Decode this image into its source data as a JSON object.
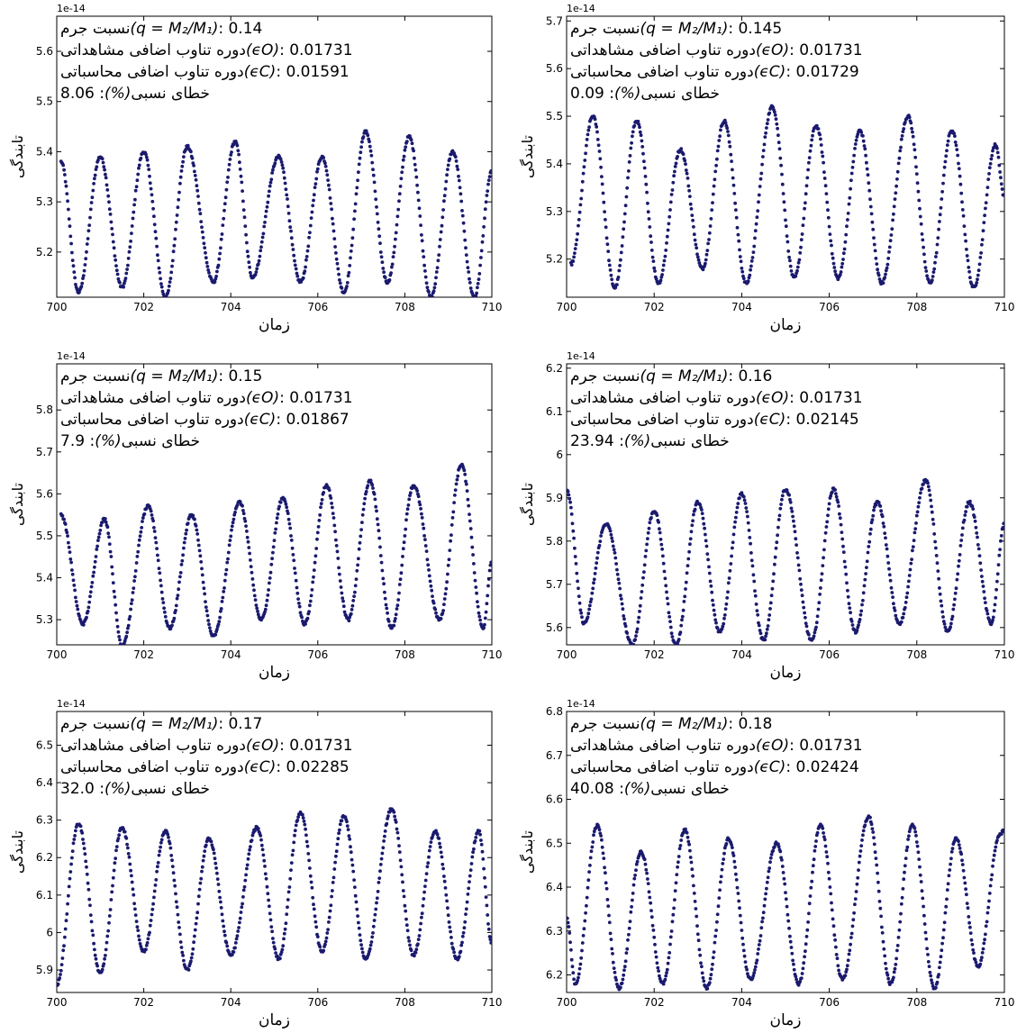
{
  "chart_data": [
    {
      "type": "scatter",
      "xlabel": "زمان",
      "ylabel": "تابندگی",
      "y_scale_label": "1e-14",
      "xlim": [
        700,
        710
      ],
      "ylim": [
        5.11,
        5.67
      ],
      "xticks": [
        700,
        702,
        704,
        706,
        708,
        710
      ],
      "yticks": [
        5.2,
        5.3,
        5.4,
        5.5,
        5.6
      ],
      "series_color": "#1a1a6e",
      "annotation": [
        {
          "label": "نسبت جرم",
          "math": "(q = M₂/M₁)",
          "value": ": 0.14"
        },
        {
          "label": "دوره تناوب اضافی مشاهداتی",
          "math": "(ϵO)",
          "value": ": 0.01731"
        },
        {
          "label": "دوره تناوب اضافی محاسباتی",
          "math": "(ϵC)",
          "value": ": 0.01591"
        },
        {
          "label": "خطای نسبی",
          "math": "(%)",
          "value": ": 8.06"
        }
      ],
      "cycles": [
        {
          "t": 700.1,
          "y": 5.38
        },
        {
          "t": 700.5,
          "y": 5.12
        },
        {
          "t": 701.0,
          "y": 5.39
        },
        {
          "t": 701.5,
          "y": 5.13
        },
        {
          "t": 702.0,
          "y": 5.4
        },
        {
          "t": 702.5,
          "y": 5.11
        },
        {
          "t": 703.0,
          "y": 5.41
        },
        {
          "t": 703.6,
          "y": 5.14
        },
        {
          "t": 704.1,
          "y": 5.42
        },
        {
          "t": 704.5,
          "y": 5.15
        },
        {
          "t": 705.1,
          "y": 5.39
        },
        {
          "t": 705.6,
          "y": 5.14
        },
        {
          "t": 706.1,
          "y": 5.39
        },
        {
          "t": 706.6,
          "y": 5.12
        },
        {
          "t": 707.1,
          "y": 5.44
        },
        {
          "t": 707.6,
          "y": 5.14
        },
        {
          "t": 708.1,
          "y": 5.43
        },
        {
          "t": 708.6,
          "y": 5.11
        },
        {
          "t": 709.1,
          "y": 5.4
        },
        {
          "t": 709.6,
          "y": 5.11
        },
        {
          "t": 710.0,
          "y": 5.36
        }
      ]
    },
    {
      "type": "scatter",
      "xlabel": "زمان",
      "ylabel": "تابندگی",
      "y_scale_label": "1e-14",
      "xlim": [
        700,
        710
      ],
      "ylim": [
        5.12,
        5.71
      ],
      "xticks": [
        700,
        702,
        704,
        706,
        708,
        710
      ],
      "yticks": [
        5.2,
        5.3,
        5.4,
        5.5,
        5.6,
        5.7
      ],
      "series_color": "#1a1a6e",
      "annotation": [
        {
          "label": "نسبت جرم",
          "math": "(q = M₂/M₁)",
          "value": ": 0.145"
        },
        {
          "label": "دوره تناوب اضافی مشاهداتی",
          "math": "(ϵO)",
          "value": ": 0.01731"
        },
        {
          "label": "دوره تناوب اضافی محاسباتی",
          "math": "(ϵC)",
          "value": ": 0.01729"
        },
        {
          "label": "خطای نسبی",
          "math": "(%)",
          "value": ": 0.09"
        }
      ],
      "cycles": [
        {
          "t": 700.1,
          "y": 5.19
        },
        {
          "t": 700.6,
          "y": 5.5
        },
        {
          "t": 701.1,
          "y": 5.14
        },
        {
          "t": 701.6,
          "y": 5.49
        },
        {
          "t": 702.1,
          "y": 5.15
        },
        {
          "t": 702.6,
          "y": 5.43
        },
        {
          "t": 703.1,
          "y": 5.18
        },
        {
          "t": 703.6,
          "y": 5.49
        },
        {
          "t": 704.1,
          "y": 5.15
        },
        {
          "t": 704.7,
          "y": 5.52
        },
        {
          "t": 705.2,
          "y": 5.16
        },
        {
          "t": 705.7,
          "y": 5.48
        },
        {
          "t": 706.2,
          "y": 5.16
        },
        {
          "t": 706.7,
          "y": 5.47
        },
        {
          "t": 707.2,
          "y": 5.15
        },
        {
          "t": 707.8,
          "y": 5.5
        },
        {
          "t": 708.3,
          "y": 5.15
        },
        {
          "t": 708.8,
          "y": 5.47
        },
        {
          "t": 709.3,
          "y": 5.14
        },
        {
          "t": 709.8,
          "y": 5.44
        },
        {
          "t": 710.0,
          "y": 5.33
        }
      ]
    },
    {
      "type": "scatter",
      "xlabel": "زمان",
      "ylabel": "تابندگی",
      "y_scale_label": "1e-14",
      "xlim": [
        700,
        710
      ],
      "ylim": [
        5.24,
        5.91
      ],
      "xticks": [
        700,
        702,
        704,
        706,
        708,
        710
      ],
      "yticks": [
        5.3,
        5.4,
        5.5,
        5.6,
        5.7,
        5.8
      ],
      "series_color": "#1a1a6e",
      "annotation": [
        {
          "label": "نسبت جرم",
          "math": "(q = M₂/M₁)",
          "value": ": 0.15"
        },
        {
          "label": "دوره تناوب اضافی مشاهداتی",
          "math": "(ϵO)",
          "value": ": 0.01731"
        },
        {
          "label": "دوره تناوب اضافی محاسباتی",
          "math": "(ϵC)",
          "value": ": 0.01867"
        },
        {
          "label": "خطای نسبی",
          "math": "(%)",
          "value": ": 7.9"
        }
      ],
      "cycles": [
        {
          "t": 700.1,
          "y": 5.55
        },
        {
          "t": 700.6,
          "y": 5.29
        },
        {
          "t": 701.1,
          "y": 5.54
        },
        {
          "t": 701.5,
          "y": 5.24
        },
        {
          "t": 702.1,
          "y": 5.57
        },
        {
          "t": 702.6,
          "y": 5.28
        },
        {
          "t": 703.1,
          "y": 5.55
        },
        {
          "t": 703.6,
          "y": 5.26
        },
        {
          "t": 704.2,
          "y": 5.58
        },
        {
          "t": 704.7,
          "y": 5.3
        },
        {
          "t": 705.2,
          "y": 5.59
        },
        {
          "t": 705.7,
          "y": 5.29
        },
        {
          "t": 706.2,
          "y": 5.62
        },
        {
          "t": 706.7,
          "y": 5.3
        },
        {
          "t": 707.2,
          "y": 5.63
        },
        {
          "t": 707.7,
          "y": 5.28
        },
        {
          "t": 708.2,
          "y": 5.62
        },
        {
          "t": 708.8,
          "y": 5.3
        },
        {
          "t": 709.3,
          "y": 5.67
        },
        {
          "t": 709.8,
          "y": 5.28
        },
        {
          "t": 710.0,
          "y": 5.44
        }
      ]
    },
    {
      "type": "scatter",
      "xlabel": "زمان",
      "ylabel": "تابندگی",
      "y_scale_label": "1e-14",
      "xlim": [
        700,
        710
      ],
      "ylim": [
        5.56,
        6.21
      ],
      "xticks": [
        700,
        702,
        704,
        706,
        708,
        710
      ],
      "yticks": [
        5.6,
        5.7,
        5.8,
        5.9,
        6.0,
        6.1,
        6.2
      ],
      "series_color": "#1a1a6e",
      "annotation": [
        {
          "label": "نسبت جرم",
          "math": "(q = M₂/M₁)",
          "value": ": 0.16"
        },
        {
          "label": "دوره تناوب اضافی مشاهداتی",
          "math": "(ϵO)",
          "value": ": 0.01731"
        },
        {
          "label": "دوره تناوب اضافی محاسباتی",
          "math": "(ϵC)",
          "value": ": 0.02145"
        },
        {
          "label": "خطای نسبی",
          "math": "(%)",
          "value": ": 23.94"
        }
      ],
      "cycles": [
        {
          "t": 700.0,
          "y": 5.92
        },
        {
          "t": 700.4,
          "y": 5.61
        },
        {
          "t": 700.9,
          "y": 5.84
        },
        {
          "t": 701.5,
          "y": 5.56
        },
        {
          "t": 702.0,
          "y": 5.87
        },
        {
          "t": 702.5,
          "y": 5.56
        },
        {
          "t": 703.0,
          "y": 5.89
        },
        {
          "t": 703.5,
          "y": 5.59
        },
        {
          "t": 704.0,
          "y": 5.91
        },
        {
          "t": 704.5,
          "y": 5.57
        },
        {
          "t": 705.0,
          "y": 5.92
        },
        {
          "t": 705.6,
          "y": 5.57
        },
        {
          "t": 706.1,
          "y": 5.92
        },
        {
          "t": 706.6,
          "y": 5.59
        },
        {
          "t": 707.1,
          "y": 5.89
        },
        {
          "t": 707.6,
          "y": 5.61
        },
        {
          "t": 708.2,
          "y": 5.94
        },
        {
          "t": 708.7,
          "y": 5.59
        },
        {
          "t": 709.2,
          "y": 5.89
        },
        {
          "t": 709.7,
          "y": 5.61
        },
        {
          "t": 710.0,
          "y": 5.84
        }
      ]
    },
    {
      "type": "scatter",
      "xlabel": "زمان",
      "ylabel": "تابندگی",
      "y_scale_label": "1e-14",
      "xlim": [
        700,
        710
      ],
      "ylim": [
        5.84,
        6.59
      ],
      "xticks": [
        700,
        702,
        704,
        706,
        708,
        710
      ],
      "yticks": [
        5.9,
        6.0,
        6.1,
        6.2,
        6.3,
        6.4,
        6.5
      ],
      "series_color": "#1a1a6e",
      "annotation": [
        {
          "label": "نسبت جرم",
          "math": "(q = M₂/M₁)",
          "value": ": 0.17"
        },
        {
          "label": "دوره تناوب اضافی مشاهداتی",
          "math": "(ϵO)",
          "value": ": 0.01731"
        },
        {
          "label": "دوره تناوب اضافی محاسباتی",
          "math": "(ϵC)",
          "value": ": 0.02285"
        },
        {
          "label": "خطای نسبی",
          "math": "(%)",
          "value": ": 32.0"
        }
      ],
      "cycles": [
        {
          "t": 700.0,
          "y": 5.86
        },
        {
          "t": 700.5,
          "y": 6.29
        },
        {
          "t": 701.0,
          "y": 5.89
        },
        {
          "t": 701.5,
          "y": 6.28
        },
        {
          "t": 702.0,
          "y": 5.95
        },
        {
          "t": 702.5,
          "y": 6.27
        },
        {
          "t": 703.0,
          "y": 5.9
        },
        {
          "t": 703.5,
          "y": 6.25
        },
        {
          "t": 704.0,
          "y": 5.94
        },
        {
          "t": 704.6,
          "y": 6.28
        },
        {
          "t": 705.1,
          "y": 5.93
        },
        {
          "t": 705.6,
          "y": 6.32
        },
        {
          "t": 706.1,
          "y": 5.95
        },
        {
          "t": 706.6,
          "y": 6.31
        },
        {
          "t": 707.1,
          "y": 5.93
        },
        {
          "t": 707.7,
          "y": 6.33
        },
        {
          "t": 708.2,
          "y": 5.94
        },
        {
          "t": 708.7,
          "y": 6.27
        },
        {
          "t": 709.2,
          "y": 5.93
        },
        {
          "t": 709.7,
          "y": 6.27
        },
        {
          "t": 710.0,
          "y": 5.97
        }
      ]
    },
    {
      "type": "scatter",
      "xlabel": "زمان",
      "ylabel": "تابندگی",
      "y_scale_label": "1e-14",
      "xlim": [
        700,
        710
      ],
      "ylim": [
        6.16,
        6.8
      ],
      "xticks": [
        700,
        702,
        704,
        706,
        708,
        710
      ],
      "yticks": [
        6.2,
        6.3,
        6.4,
        6.5,
        6.6,
        6.7,
        6.8
      ],
      "series_color": "#1a1a6e",
      "annotation": [
        {
          "label": "نسبت جرم",
          "math": "(q = M₂/M₁)",
          "value": ": 0.18"
        },
        {
          "label": "دوره تناوب اضافی مشاهداتی",
          "math": "(ϵO)",
          "value": ": 0.01731"
        },
        {
          "label": "دوره تناوب اضافی محاسباتی",
          "math": "(ϵC)",
          "value": ": 0.02424"
        },
        {
          "label": "خطای نسبی",
          "math": "(%)",
          "value": ": 40.08"
        }
      ],
      "cycles": [
        {
          "t": 700.0,
          "y": 6.33
        },
        {
          "t": 700.2,
          "y": 6.18
        },
        {
          "t": 700.7,
          "y": 6.54
        },
        {
          "t": 701.2,
          "y": 6.17
        },
        {
          "t": 701.7,
          "y": 6.48
        },
        {
          "t": 702.2,
          "y": 6.18
        },
        {
          "t": 702.7,
          "y": 6.53
        },
        {
          "t": 703.2,
          "y": 6.17
        },
        {
          "t": 703.7,
          "y": 6.51
        },
        {
          "t": 704.2,
          "y": 6.19
        },
        {
          "t": 704.8,
          "y": 6.5
        },
        {
          "t": 705.3,
          "y": 6.18
        },
        {
          "t": 705.8,
          "y": 6.54
        },
        {
          "t": 706.3,
          "y": 6.19
        },
        {
          "t": 706.9,
          "y": 6.56
        },
        {
          "t": 707.4,
          "y": 6.18
        },
        {
          "t": 707.9,
          "y": 6.54
        },
        {
          "t": 708.4,
          "y": 6.17
        },
        {
          "t": 708.9,
          "y": 6.51
        },
        {
          "t": 709.4,
          "y": 6.22
        },
        {
          "t": 709.9,
          "y": 6.52
        },
        {
          "t": 710.0,
          "y": 6.53
        }
      ]
    }
  ]
}
